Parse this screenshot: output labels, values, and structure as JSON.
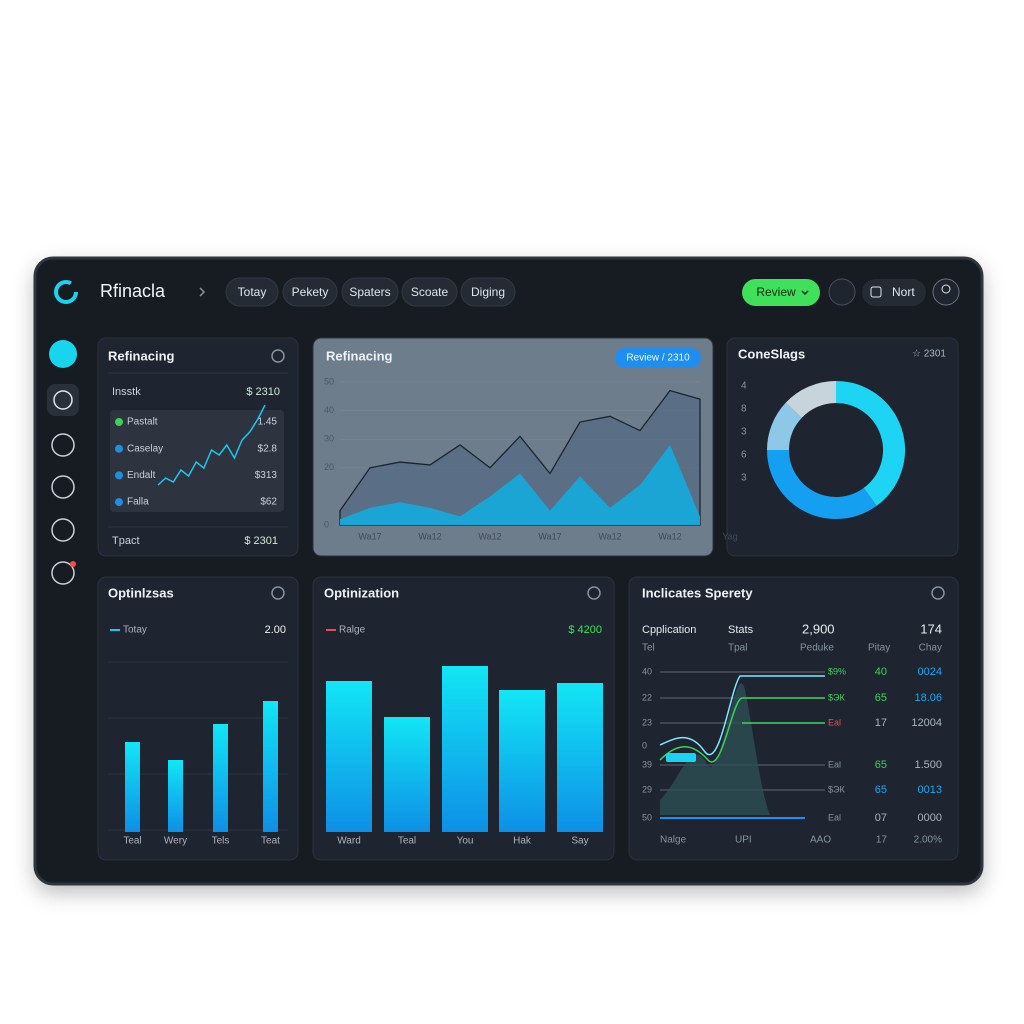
{
  "header": {
    "brand": "Rfinacla",
    "tabs": [
      "Totay",
      "Pekety",
      "Spaters",
      "Scoate",
      "Diging"
    ],
    "review": "Review",
    "user": "Nort"
  },
  "card1": {
    "title": "Refinacing",
    "summary": {
      "label": "Insstk",
      "value": "$ 2310"
    },
    "legend": [
      {
        "name": "Pastalt",
        "value": "1.45",
        "color": "#3fcf5a"
      },
      {
        "name": "Caselay",
        "value": "$2.8",
        "color": "#1e90e0"
      },
      {
        "name": "Endalt",
        "value": "$313",
        "color": "#1e90e0"
      },
      {
        "name": "Falla",
        "value": "$62",
        "color": "#1e90e0"
      }
    ],
    "sparkline": {
      "type": "line",
      "color": "#19c8ec",
      "values": [
        5,
        12,
        8,
        20,
        14,
        28,
        22,
        40,
        35,
        45,
        32,
        50,
        58,
        70,
        85
      ]
    },
    "footer": {
      "label": "Tpact",
      "value": "$ 2301"
    }
  },
  "card2": {
    "title": "Refinacing",
    "badge": "Review / 2310",
    "chart": {
      "type": "area",
      "x": [
        "Wa17",
        null,
        "Wa12",
        null,
        "Wa12",
        null,
        "Wa17",
        null,
        "Wa12",
        null,
        "Wa12",
        null,
        "Yag"
      ],
      "ylim": [
        0,
        50
      ],
      "yticks": [
        0,
        20,
        30,
        40,
        50
      ],
      "series": [
        {
          "color": "#4b6580",
          "values": [
            5,
            20,
            22,
            21,
            28,
            20,
            31,
            18,
            36,
            38,
            33,
            47,
            44
          ]
        },
        {
          "color": "#17a8d8",
          "values": [
            2,
            6,
            8,
            6,
            3,
            10,
            18,
            5,
            17,
            6,
            14,
            28,
            3
          ]
        }
      ]
    }
  },
  "card3": {
    "title": "ConeSlags",
    "meta": "☆ 2301",
    "scale": [
      "4",
      "8",
      "3",
      "6",
      "3"
    ],
    "chart": {
      "type": "pie",
      "values": [
        40,
        35,
        12,
        13
      ],
      "colors": [
        "#1ed4f5",
        "#159ff0",
        "#8ec8e8",
        "#c8d4dc"
      ]
    }
  },
  "card4": {
    "title": "Optinlzsas",
    "legend": "Totay",
    "total": "2.00",
    "chart": {
      "type": "bar",
      "categories": [
        "Teal",
        "Wery",
        "Tels",
        "Teat"
      ],
      "values": [
        90,
        72,
        108,
        131
      ]
    }
  },
  "card5": {
    "title": "Optinization",
    "legend": "Ralge",
    "total": "$ 4200",
    "chart": {
      "type": "bar",
      "categories": [
        "Ward",
        "Teal",
        "You",
        "Hak",
        "Say"
      ],
      "values": [
        151,
        115,
        166,
        142,
        149
      ]
    }
  },
  "card6": {
    "title": "Inclicates Sperety",
    "head": [
      "Cpplication",
      "Stats",
      "2,900",
      "174"
    ],
    "sub": [
      "Tel",
      "Tpal",
      "Peduke",
      "Pitay",
      "Chay"
    ],
    "axis": [
      "40",
      "22",
      "23",
      "0",
      "39",
      "29",
      "50"
    ],
    "rows": [
      {
        "tag": "$9%",
        "a": "40",
        "b": "0024"
      },
      {
        "tag": "$ЭК",
        "a": "65",
        "b": "18.06"
      },
      {
        "tag": "Eal",
        "a": "17",
        "b": "12004"
      },
      {
        "tag": "Eal",
        "a": "65",
        "b": "1.500"
      },
      {
        "tag": "$ЭК",
        "a": "65",
        "b": "0013"
      },
      {
        "tag": "Eal",
        "a": "07",
        "b": "0000"
      }
    ],
    "foot": [
      "Nalge",
      "UPI",
      "AAO",
      "17",
      "2.00%"
    ]
  }
}
